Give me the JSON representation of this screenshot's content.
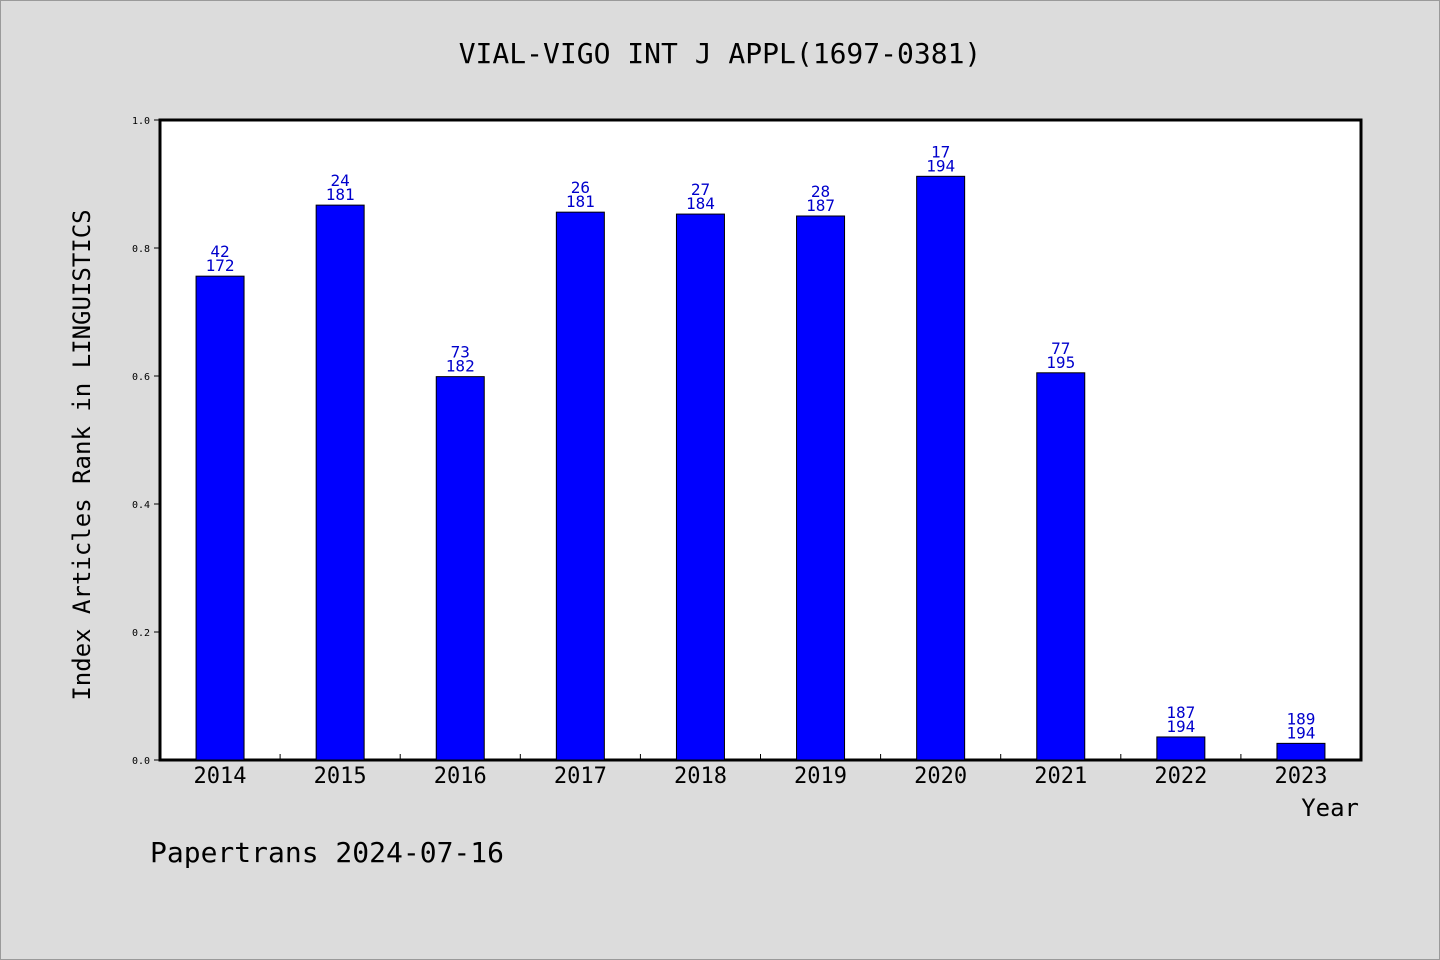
{
  "chart_data": {
    "type": "bar",
    "title": "VIAL-VIGO INT J APPL(1697-0381)",
    "xlabel": "Year",
    "ylabel": "Index Articles Rank in LINGUISTICS",
    "ylim": [
      0,
      1.0
    ],
    "yticks": [
      "0.0",
      "0.2",
      "0.4",
      "0.6",
      "0.8",
      "1.0"
    ],
    "categories": [
      "2014",
      "2015",
      "2016",
      "2017",
      "2018",
      "2019",
      "2020",
      "2021",
      "2022",
      "2023"
    ],
    "values": [
      0.756,
      0.867,
      0.599,
      0.856,
      0.853,
      0.85,
      0.912,
      0.605,
      0.036,
      0.026
    ],
    "ranks": [
      "42",
      "24",
      "73",
      "26",
      "27",
      "28",
      "17",
      "77",
      "187",
      "189"
    ],
    "totals": [
      "172",
      "181",
      "182",
      "181",
      "184",
      "187",
      "194",
      "195",
      "194",
      "194"
    ],
    "bar_color": "#0000ff",
    "label_color": "#0000cc",
    "background": "#dcdcdc",
    "plot_background": "#ffffff"
  },
  "footer": "Papertrans 2024-07-16"
}
